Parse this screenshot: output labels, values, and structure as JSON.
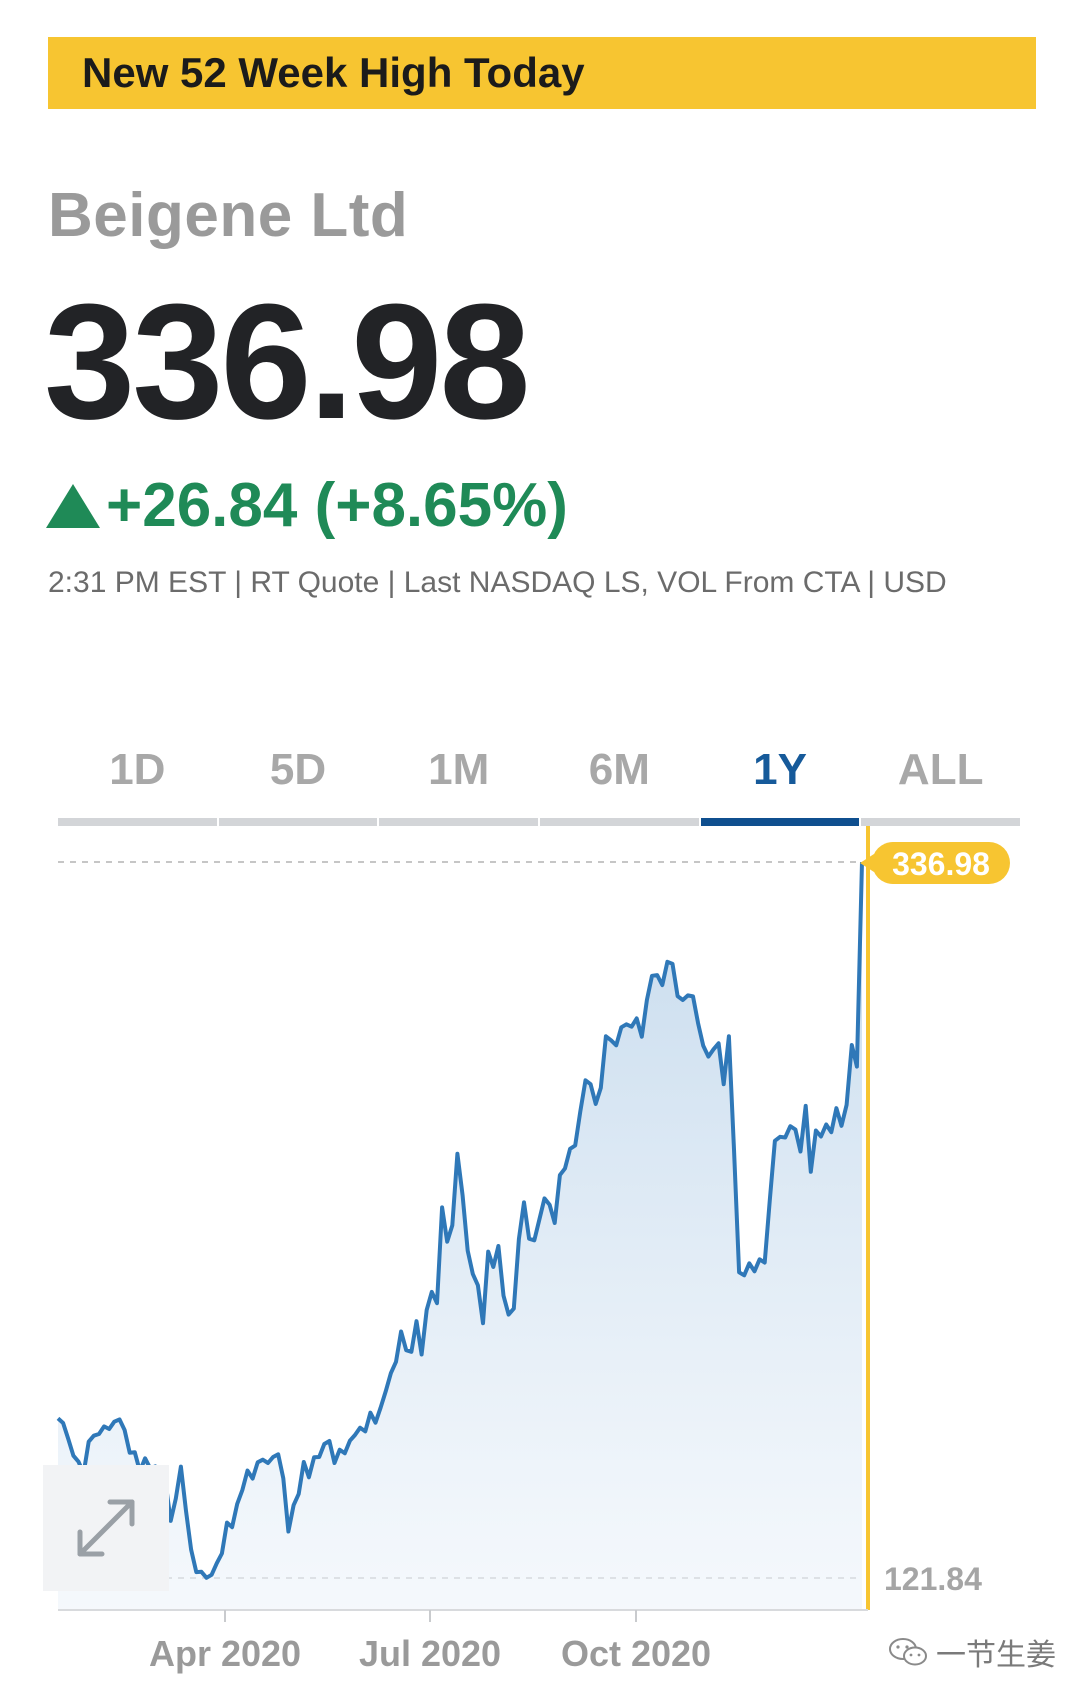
{
  "banner": {
    "text": "New 52 Week High Today"
  },
  "quote": {
    "company": "Beigene Ltd",
    "price": "336.98",
    "change": "+26.84 (+8.65%)",
    "meta": "2:31 PM EST | RT Quote | Last NASDAQ LS, VOL From CTA | USD"
  },
  "tabs": [
    {
      "label": "1D"
    },
    {
      "label": "5D"
    },
    {
      "label": "1M"
    },
    {
      "label": "6M"
    },
    {
      "label": "1Y",
      "active": true
    },
    {
      "label": "ALL"
    }
  ],
  "colors": {
    "banner": "#f7c531",
    "positive": "#1f8a57",
    "line": "#2f78b8",
    "active_tab": "#0f4f8f",
    "marker": "#f7c531"
  },
  "icons": {
    "expand": "expand-arrows-icon",
    "watermark": "wechat-icon"
  },
  "watermark": {
    "text": "一节生姜"
  },
  "chart_data": {
    "type": "area",
    "period": "1Y",
    "xlabels": [
      "Apr 2020",
      "Jul 2020",
      "Oct 2020"
    ],
    "high_label": "336.98",
    "low_label": "121.84",
    "ylim": [
      121.84,
      336.98
    ],
    "grid": false,
    "values": [
      169.8,
      168.4,
      163.7,
      158.6,
      156.8,
      153.3,
      162.8,
      164.6,
      165.1,
      167.4,
      166.6,
      168.8,
      169.5,
      166.3,
      159.5,
      159.6,
      153.9,
      157.8,
      154.8,
      155.4,
      151.5,
      150.7,
      139.0,
      145.7,
      155.3,
      142.0,
      130.4,
      123.6,
      123.7,
      121.9,
      122.8,
      126.3,
      129.2,
      138.5,
      137.1,
      144.1,
      148.3,
      154.1,
      151.7,
      156.6,
      157.4,
      156.4,
      158.2,
      159.0,
      151.8,
      135.8,
      143.7,
      147.1,
      156.7,
      152.1,
      158.1,
      158.2,
      162.1,
      163.0,
      156.4,
      160.4,
      159.3,
      163.1,
      164.8,
      167.0,
      165.9,
      171.5,
      168.5,
      173.0,
      177.9,
      183.4,
      186.8,
      195.9,
      190.3,
      189.8,
      199.0,
      189.0,
      202.4,
      207.8,
      204.4,
      233.2,
      222.9,
      227.8,
      249.3,
      236.8,
      220.2,
      213.2,
      209.8,
      198.4,
      219.9,
      215.3,
      221.6,
      206.7,
      201.0,
      202.8,
      223.7,
      234.7,
      223.8,
      223.3,
      229.6,
      235.9,
      234.0,
      228.5,
      242.9,
      244.9,
      250.8,
      251.8,
      262.0,
      271.4,
      270.2,
      264.3,
      269.1,
      284.6,
      283.4,
      281.9,
      287.3,
      288.2,
      287.5,
      290.0,
      284.5,
      295.5,
      302.8,
      303.0,
      300.0,
      307.0,
      306.4,
      296.7,
      295.5,
      296.9,
      296.6,
      288.5,
      281.8,
      278.5,
      280.7,
      282.5,
      270.2,
      284.6,
      250.6,
      213.7,
      212.8,
      216.4,
      214.0,
      217.6,
      216.6,
      235.4,
      253.2,
      254.4,
      254.2,
      257.6,
      256.6,
      250.0,
      263.7,
      243.9,
      256.3,
      254.5,
      258.1,
      255.8,
      263.0,
      257.7,
      264.0,
      282.0,
      275.5,
      336.98
    ]
  }
}
